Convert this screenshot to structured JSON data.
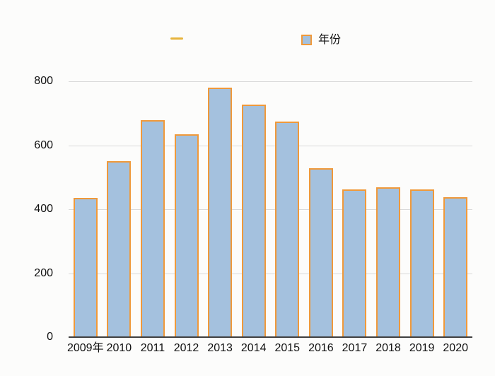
{
  "legend": {
    "items": [
      {
        "type": "line",
        "label": "",
        "color": "#e7b43c"
      },
      {
        "type": "bar",
        "label": "年份",
        "fill": "#a4c1de",
        "border": "#f0993a"
      }
    ],
    "position": "top"
  },
  "chart_data": {
    "type": "bar",
    "title": "",
    "categories": [
      "2009年",
      "2010",
      "2011",
      "2012",
      "2013",
      "2014",
      "2015",
      "2016",
      "2017",
      "2018",
      "2019",
      "2020"
    ],
    "series": [
      {
        "name": "年份",
        "values": [
          435,
          550,
          678,
          635,
          780,
          728,
          675,
          528,
          463,
          468,
          463,
          438
        ]
      }
    ],
    "xlabel": "",
    "ylabel": "",
    "ylim": [
      0,
      800
    ],
    "yticks": [
      0,
      200,
      400,
      600,
      800
    ],
    "grid": true,
    "legend_position": "top",
    "bar_fill": "#a4c1de",
    "bar_border": "#f0993a",
    "line_series_color": "#e7b43c",
    "gridline_color": "#d9d9d9",
    "axis_line_color": "#3f3f3f",
    "text_color": "#111111",
    "background_color": "#fcfcfb"
  }
}
